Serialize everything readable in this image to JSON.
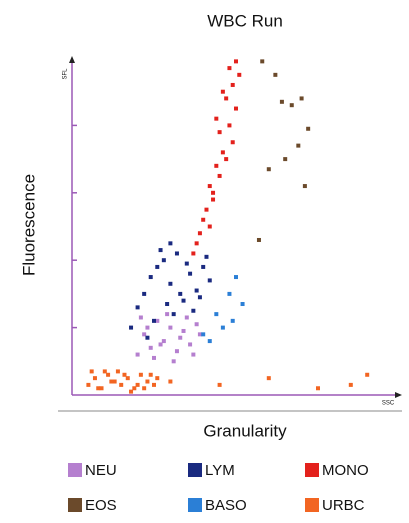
{
  "chart_data": {
    "type": "scatter",
    "title": "WBC Run",
    "x_label": "Granularity",
    "y_label": "Fluorescence",
    "x_axis_code": "SSC",
    "y_axis_code": "SFL",
    "xlim": [
      0,
      100
    ],
    "ylim": [
      0,
      100
    ],
    "yticks": [
      20,
      40,
      60,
      80
    ],
    "axis_color": "#9b59b6",
    "series": [
      {
        "name": "NEU",
        "color": "#b57fcf",
        "x": [
          20,
          22,
          24,
          26,
          28,
          30,
          32,
          34,
          36,
          38,
          21,
          25,
          29,
          33,
          37,
          39,
          23,
          27,
          31,
          35
        ],
        "y": [
          12,
          18,
          14,
          22,
          16,
          20,
          13,
          19,
          15,
          21,
          23,
          11,
          24,
          17,
          12,
          18,
          20,
          15,
          10,
          23
        ]
      },
      {
        "name": "LYM",
        "color": "#1a2a80",
        "x": [
          18,
          20,
          22,
          24,
          26,
          28,
          30,
          32,
          34,
          36,
          38,
          40,
          42,
          25,
          29,
          33,
          37,
          27,
          31,
          35,
          39,
          41,
          23,
          30
        ],
        "y": [
          20,
          26,
          30,
          35,
          38,
          40,
          33,
          42,
          28,
          36,
          31,
          38,
          34,
          22,
          27,
          30,
          25,
          43,
          24,
          39,
          29,
          41,
          17,
          45
        ]
      },
      {
        "name": "MONO",
        "color": "#e3211c",
        "x": [
          37,
          39,
          41,
          43,
          45,
          47,
          49,
          40,
          42,
          44,
          46,
          48,
          50,
          38,
          43,
          45,
          47,
          49,
          51,
          46,
          48,
          50,
          44,
          42
        ],
        "y": [
          42,
          48,
          55,
          60,
          65,
          70,
          75,
          52,
          62,
          68,
          72,
          80,
          85,
          45,
          58,
          78,
          88,
          92,
          95,
          90,
          97,
          99,
          82,
          50
        ]
      },
      {
        "name": "EOS",
        "color": "#6b4a2b",
        "x": [
          58,
          62,
          64,
          67,
          70,
          72,
          60,
          65,
          69,
          71,
          57
        ],
        "y": [
          99,
          95,
          87,
          86,
          88,
          79,
          67,
          70,
          74,
          62,
          46
        ]
      },
      {
        "name": "BASO",
        "color": "#2b7fd6",
        "x": [
          40,
          44,
          48,
          50,
          52,
          46,
          42,
          49
        ],
        "y": [
          18,
          24,
          30,
          35,
          27,
          20,
          16,
          22
        ]
      },
      {
        "name": "URBC",
        "color": "#f26522",
        "x": [
          5,
          7,
          9,
          11,
          13,
          15,
          17,
          19,
          21,
          23,
          25,
          6,
          10,
          14,
          18,
          22,
          26,
          8,
          12,
          16,
          20,
          24,
          30,
          45,
          60,
          75,
          85,
          90
        ],
        "y": [
          3,
          5,
          2,
          6,
          4,
          3,
          5,
          2,
          6,
          4,
          3,
          7,
          7,
          7,
          1,
          2,
          5,
          2,
          4,
          6,
          3,
          6,
          4,
          3,
          5,
          2,
          3,
          6
        ]
      }
    ]
  }
}
